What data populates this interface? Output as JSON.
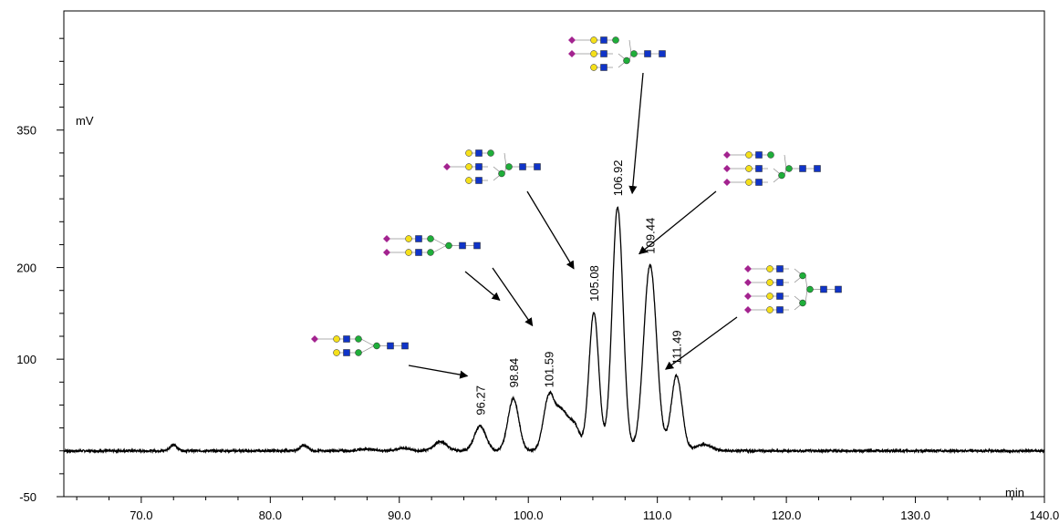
{
  "chart_data": {
    "type": "line",
    "title": "",
    "xlabel": "min",
    "ylabel": "mV",
    "xlim": [
      64,
      140
    ],
    "ylim": [
      -50,
      480
    ],
    "x_ticks": [
      70,
      80,
      90,
      100,
      110,
      120,
      130,
      140
    ],
    "x_tick_labels": [
      "70.0",
      "80.0",
      "90.0",
      "100.0",
      "110.0",
      "120.0",
      "130.0",
      "140.0"
    ],
    "y_ticks": [
      -50,
      100,
      200,
      350
    ],
    "y_tick_labels": [
      "-50",
      "100",
      "200",
      "350"
    ],
    "grid": false,
    "series": [
      {
        "baseline": 0,
        "peaks": [
          {
            "x": 72.5,
            "h": 6,
            "w": 0.3
          },
          {
            "x": 82.6,
            "h": 6,
            "w": 0.3
          },
          {
            "x": 87.5,
            "h": 2,
            "w": 0.6
          },
          {
            "x": 90.3,
            "h": 3,
            "w": 0.5
          },
          {
            "x": 93.2,
            "h": 10,
            "w": 0.5
          },
          {
            "x": 96.27,
            "h": 27,
            "w": 0.45
          },
          {
            "x": 98.84,
            "h": 57,
            "w": 0.42
          },
          {
            "x": 101.59,
            "h": 57,
            "w": 0.42
          },
          {
            "x": 102.6,
            "h": 42,
            "w": 0.5
          },
          {
            "x": 103.6,
            "h": 25,
            "w": 0.4
          },
          {
            "x": 105.08,
            "h": 151,
            "w": 0.38
          },
          {
            "x": 106.92,
            "h": 266,
            "w": 0.42
          },
          {
            "x": 109.44,
            "h": 203,
            "w": 0.5
          },
          {
            "x": 111.49,
            "h": 82,
            "w": 0.42
          },
          {
            "x": 113.6,
            "h": 7,
            "w": 0.6
          }
        ]
      }
    ],
    "annotations": [
      {
        "text": "96.27",
        "x": 96.27,
        "y": 27
      },
      {
        "text": "98.84",
        "x": 98.84,
        "y": 57
      },
      {
        "text": "101.59",
        "x": 101.59,
        "y": 57
      },
      {
        "text": "105.08",
        "x": 105.08,
        "y": 151
      },
      {
        "text": "106.92",
        "x": 106.92,
        "y": 266
      },
      {
        "text": "109.44",
        "x": 109.44,
        "y": 203
      },
      {
        "text": "111.49",
        "x": 111.49,
        "y": 82
      }
    ],
    "glycan_structures": [
      {
        "antennas": 2,
        "sialic": [
          true,
          false
        ],
        "arrows_to": [
          "96.27"
        ]
      },
      {
        "antennas": 2,
        "sialic": [
          true,
          true
        ],
        "arrows_to": [
          "98.84",
          "101.59"
        ]
      },
      {
        "antennas": 3,
        "sialic": [
          false,
          true,
          false
        ],
        "arrows_to": [
          "105.08"
        ]
      },
      {
        "antennas": 3,
        "sialic": [
          true,
          true,
          false
        ],
        "arrows_to": [
          "106.92"
        ]
      },
      {
        "antennas": 3,
        "sialic": [
          true,
          true,
          true
        ],
        "arrows_to": [
          "109.44"
        ]
      },
      {
        "antennas": 4,
        "sialic": [
          true,
          true,
          true,
          true
        ],
        "arrows_to": [
          "111.49"
        ]
      }
    ],
    "colors": {
      "trace": "#000000",
      "galactose": "#f5e01a",
      "glcnac": "#1034c8",
      "mannose": "#1fae3a",
      "sialic_acid": "#a3238f"
    }
  }
}
